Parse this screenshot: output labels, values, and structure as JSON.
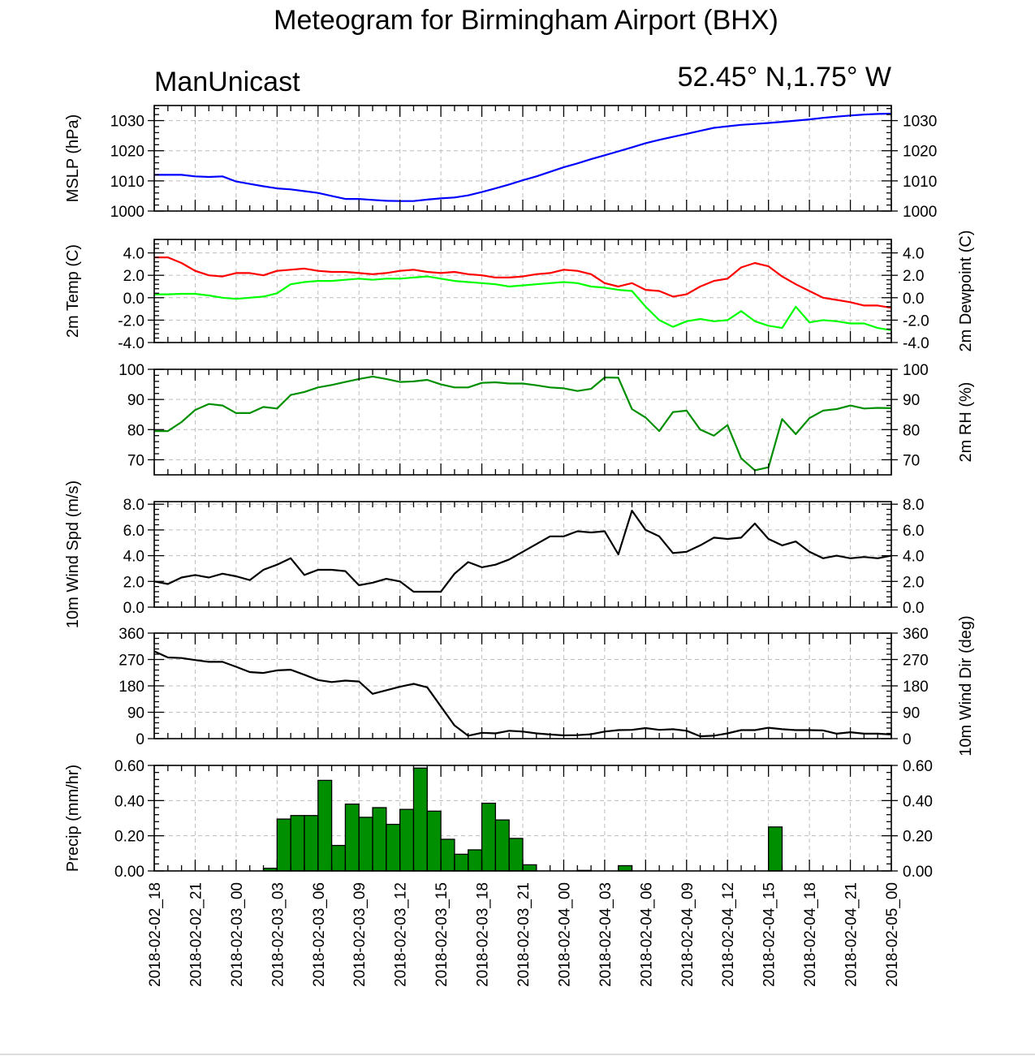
{
  "title": "Meteogram for Birmingham Airport (BHX)",
  "subtitle_left": "ManUnicast",
  "subtitle_right": "52.45° N,1.75° W",
  "chart_data": {
    "type": "line",
    "x_tick_labels": [
      "2018-02-02_18",
      "2018-02-02_21",
      "2018-02-03_00",
      "2018-02-03_03",
      "2018-02-03_06",
      "2018-02-03_09",
      "2018-02-03_12",
      "2018-02-03_15",
      "2018-02-03_18",
      "2018-02-03_21",
      "2018-02-04_00",
      "2018-02-04_03",
      "2018-02-04_06",
      "2018-02-04_09",
      "2018-02-04_12",
      "2018-02-04_15",
      "2018-02-04_18",
      "2018-02-04_21",
      "2018-02-05_00"
    ],
    "x_hours_range": [
      0,
      54
    ],
    "panels": [
      {
        "id": "mslp",
        "type": "line",
        "ylabel_left": "MSLP (hPa)",
        "ylabel_right": "",
        "ylim": [
          1000,
          1035
        ],
        "yticks": [
          1000,
          1010,
          1020,
          1030
        ],
        "tick_format": "int",
        "right_tick_labels": true,
        "series": [
          {
            "color": "#0000ff",
            "x": [
              0,
              1,
              2,
              3,
              4,
              5,
              6,
              7,
              8,
              9,
              10,
              11,
              12,
              13,
              14,
              15,
              16,
              17,
              18,
              19,
              20,
              21,
              22,
              23,
              24,
              25,
              26,
              27,
              28,
              29,
              30,
              31,
              32,
              33,
              34,
              35,
              36,
              37,
              38,
              39,
              40,
              41,
              42,
              43,
              44,
              45,
              46,
              47,
              48,
              49,
              50,
              51,
              52,
              53,
              54
            ],
            "values": [
              1012,
              1012,
              1012,
              1011.5,
              1011.3,
              1011.5,
              1009.8,
              1009.0,
              1008.2,
              1007.5,
              1007.2,
              1006.6,
              1006,
              1005,
              1004,
              1004,
              1003.7,
              1003.4,
              1003.3,
              1003.3,
              1003.8,
              1004.2,
              1004.5,
              1005.2,
              1006.3,
              1007.5,
              1008.8,
              1010.2,
              1011.5,
              1013,
              1014.5,
              1015.8,
              1017.2,
              1018.5,
              1019.8,
              1021.1,
              1022.5,
              1023.6,
              1024.6,
              1025.6,
              1026.6,
              1027.6,
              1028.1,
              1028.6,
              1028.9,
              1029.2,
              1029.6,
              1030,
              1030.4,
              1030.9,
              1031.3,
              1031.7,
              1032,
              1032.2,
              1032.3
            ]
          }
        ]
      },
      {
        "id": "temp",
        "type": "line",
        "ylabel_left": "2m Temp (C)",
        "ylabel_right": "2m Dewpoint (C)",
        "ylim": [
          -4,
          5.2
        ],
        "yticks": [
          -4,
          -2,
          0,
          2,
          4
        ],
        "tick_format": "1dp",
        "right_tick_labels": true,
        "series": [
          {
            "color": "#ff0000",
            "x": [
              0,
              1,
              2,
              3,
              4,
              5,
              6,
              7,
              8,
              9,
              10,
              11,
              12,
              13,
              14,
              15,
              16,
              17,
              18,
              19,
              20,
              21,
              22,
              23,
              24,
              25,
              26,
              27,
              28,
              29,
              30,
              31,
              32,
              33,
              34,
              35,
              36,
              37,
              38,
              39,
              40,
              41,
              42,
              43,
              44,
              45,
              46,
              47,
              48,
              49,
              50,
              51,
              52,
              53,
              54
            ],
            "values": [
              3.6,
              3.6,
              3.1,
              2.4,
              2.0,
              1.9,
              2.2,
              2.2,
              2.0,
              2.4,
              2.5,
              2.6,
              2.4,
              2.3,
              2.3,
              2.2,
              2.1,
              2.2,
              2.4,
              2.5,
              2.3,
              2.2,
              2.3,
              2.1,
              2.0,
              1.8,
              1.8,
              1.9,
              2.1,
              2.2,
              2.5,
              2.4,
              2.1,
              1.3,
              1.0,
              1.3,
              0.7,
              0.6,
              0.1,
              0.3,
              1.0,
              1.5,
              1.7,
              2.7,
              3.1,
              2.8,
              1.9,
              1.2,
              0.6,
              0.0,
              -0.2,
              -0.4,
              -0.7,
              -0.7,
              -0.9
            ]
          },
          {
            "color": "#00ff00",
            "x": [
              0,
              1,
              2,
              3,
              4,
              5,
              6,
              7,
              8,
              9,
              10,
              11,
              12,
              13,
              14,
              15,
              16,
              17,
              18,
              19,
              20,
              21,
              22,
              23,
              24,
              25,
              26,
              27,
              28,
              29,
              30,
              31,
              32,
              33,
              34,
              35,
              36,
              37,
              38,
              39,
              40,
              41,
              42,
              43,
              44,
              45,
              46,
              47,
              48,
              49,
              50,
              51,
              52,
              53,
              54
            ],
            "values": [
              0.3,
              0.3,
              0.35,
              0.35,
              0.2,
              0.0,
              -0.1,
              0.0,
              0.1,
              0.4,
              1.2,
              1.4,
              1.5,
              1.5,
              1.6,
              1.7,
              1.6,
              1.7,
              1.7,
              1.8,
              1.9,
              1.7,
              1.5,
              1.4,
              1.3,
              1.2,
              1.0,
              1.1,
              1.2,
              1.3,
              1.4,
              1.3,
              1.0,
              0.9,
              0.7,
              0.6,
              -0.8,
              -2.0,
              -2.6,
              -2.1,
              -1.9,
              -2.1,
              -2.0,
              -1.2,
              -2.1,
              -2.5,
              -2.7,
              -0.8,
              -2.2,
              -2.0,
              -2.1,
              -2.3,
              -2.3,
              -2.7,
              -2.9
            ]
          }
        ]
      },
      {
        "id": "rh",
        "type": "line",
        "ylabel_left": "",
        "ylabel_right": "2m RH (%)",
        "ylim": [
          65,
          100
        ],
        "yticks": [
          70,
          80,
          90,
          100
        ],
        "tick_format": "int",
        "right_tick_labels": true,
        "series": [
          {
            "color": "#008f00",
            "x": [
              0,
              1,
              2,
              3,
              4,
              5,
              6,
              7,
              8,
              9,
              10,
              11,
              12,
              13,
              14,
              15,
              16,
              17,
              18,
              19,
              20,
              21,
              22,
              23,
              24,
              25,
              26,
              27,
              28,
              29,
              30,
              31,
              32,
              33,
              34,
              35,
              36,
              37,
              38,
              39,
              40,
              41,
              42,
              43,
              44,
              45,
              46,
              47,
              48,
              49,
              50,
              51,
              52,
              53,
              54
            ],
            "values": [
              79.5,
              79.5,
              82.5,
              86.5,
              88.5,
              88,
              85.5,
              85.5,
              87.5,
              87,
              91.5,
              92.5,
              94,
              94.8,
              95.8,
              96.8,
              97.6,
              96.8,
              95.8,
              96,
              96.5,
              95,
              94,
              94,
              95.5,
              95.7,
              95.3,
              95.3,
              94.7,
              94,
              93.7,
              92.8,
              93.5,
              97.3,
              97.2,
              86.8,
              84,
              79.5,
              85.8,
              86.3,
              80,
              78,
              81.5,
              70.5,
              66.5,
              67.5,
              83.5,
              78.5,
              83.8,
              86.3,
              86.8,
              88,
              87,
              87.2,
              87.1
            ]
          }
        ]
      },
      {
        "id": "wspd",
        "type": "line",
        "ylabel_left": "10m Wind Spd (m/s)",
        "ylabel_right": "",
        "ylim": [
          0,
          8.2
        ],
        "yticks": [
          0,
          2,
          4,
          6,
          8
        ],
        "tick_format": "1dp",
        "right_tick_labels": true,
        "series": [
          {
            "color": "#000000",
            "x": [
              0,
              1,
              2,
              3,
              4,
              5,
              6,
              7,
              8,
              9,
              10,
              11,
              12,
              13,
              14,
              15,
              16,
              17,
              18,
              19,
              20,
              21,
              22,
              23,
              24,
              25,
              26,
              27,
              28,
              29,
              30,
              31,
              32,
              33,
              34,
              35,
              36,
              37,
              38,
              39,
              40,
              41,
              42,
              43,
              44,
              45,
              46,
              47,
              48,
              49,
              50,
              51,
              52,
              53,
              54
            ],
            "values": [
              2.0,
              1.8,
              2.3,
              2.5,
              2.3,
              2.6,
              2.4,
              2.1,
              2.9,
              3.3,
              3.8,
              2.5,
              2.9,
              2.9,
              2.8,
              1.7,
              1.9,
              2.2,
              2.0,
              1.2,
              1.2,
              1.2,
              2.6,
              3.5,
              3.1,
              3.3,
              3.7,
              4.3,
              4.9,
              5.5,
              5.5,
              5.9,
              5.8,
              5.9,
              4.1,
              7.5,
              6.0,
              5.5,
              4.2,
              4.3,
              4.8,
              5.4,
              5.3,
              5.4,
              6.5,
              5.3,
              4.8,
              5.1,
              4.3,
              3.8,
              4.0,
              3.8,
              3.9,
              3.8,
              4.0
            ]
          }
        ]
      },
      {
        "id": "wdir",
        "type": "line",
        "ylabel_left": "",
        "ylabel_right": "10m Wind Dir (deg)",
        "ylim": [
          0,
          360
        ],
        "yticks": [
          0,
          90,
          180,
          270,
          360
        ],
        "tick_format": "int",
        "right_tick_labels": true,
        "series": [
          {
            "color": "#000000",
            "x": [
              0,
              1,
              2,
              3,
              4,
              5,
              6,
              7,
              8,
              9,
              10,
              11,
              12,
              13,
              14,
              15,
              16,
              17,
              18,
              19,
              20,
              21,
              22,
              23,
              24,
              25,
              26,
              27,
              28,
              29,
              30,
              31,
              32,
              33,
              34,
              35,
              36,
              37,
              38,
              39,
              40,
              41,
              42,
              43,
              44,
              45,
              46,
              47,
              48,
              49,
              50,
              51,
              52,
              53,
              54
            ],
            "values": [
              298,
              277,
              275,
              268,
              262,
              262,
              245,
              227,
              224,
              233,
              235,
              218,
              200,
              193,
              198,
              195,
              153,
              165,
              177,
              187,
              175,
              110,
              45,
              10,
              20,
              18,
              27,
              24,
              18,
              14,
              11,
              12,
              15,
              24,
              29,
              30,
              36,
              30,
              32,
              27,
              8,
              10,
              18,
              29,
              29,
              37,
              32,
              29,
              29,
              28,
              17,
              22,
              17,
              17,
              14
            ]
          }
        ]
      },
      {
        "id": "precip",
        "type": "bar",
        "ylabel_left": "Precip (mm/hr)",
        "ylabel_right": "",
        "ylim": [
          0,
          0.6
        ],
        "yticks": [
          0,
          0.2,
          0.4,
          0.6
        ],
        "tick_format": "2dp",
        "right_tick_labels": true,
        "bar_color": "#008f00",
        "bars": {
          "x": [
            8,
            9,
            10,
            11,
            12,
            13,
            14,
            15,
            16,
            17,
            18,
            19,
            20,
            21,
            22,
            23,
            24,
            25,
            26,
            27,
            28,
            29,
            30,
            31,
            32,
            33,
            34,
            35,
            36,
            37,
            38,
            39,
            40,
            41,
            42,
            43,
            44,
            45,
            46
          ],
          "values": [
            0.015,
            0.295,
            0.315,
            0.315,
            0.515,
            0.145,
            0.38,
            0.305,
            0.36,
            0.265,
            0.35,
            0.585,
            0.34,
            0.18,
            0.095,
            0.12,
            0.385,
            0.29,
            0.185,
            0.035,
            0,
            0,
            0,
            0.003,
            0,
            0,
            0.03,
            0,
            0,
            0,
            0,
            0,
            0,
            0,
            0,
            0,
            0,
            0.25,
            0
          ]
        }
      }
    ]
  }
}
